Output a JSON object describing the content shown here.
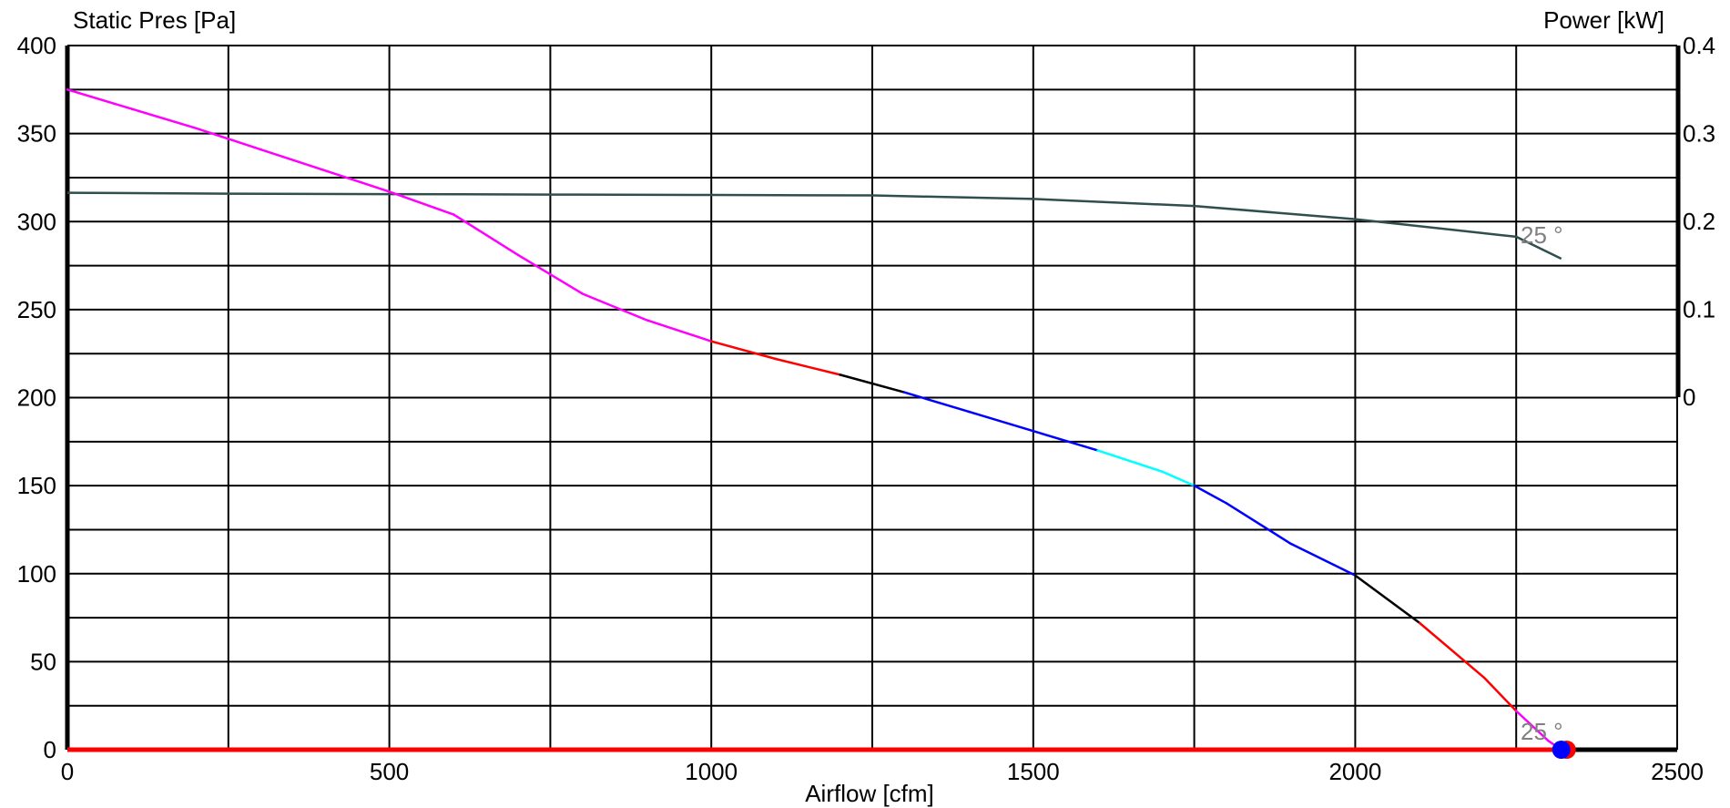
{
  "chart_data": {
    "type": "line",
    "title": "",
    "xlabel": "Airflow [cfm]",
    "ylabel_left": "Static Pres [Pa]",
    "ylabel_right": "Power [kW]",
    "xlim": [
      0,
      2500
    ],
    "ylim_left": [
      0,
      400
    ],
    "ylim_right": [
      0,
      0.4
    ],
    "grid": true,
    "x_ticks": [
      0,
      500,
      1000,
      1500,
      2000,
      2500
    ],
    "x_tick_labels": [
      "0",
      "500",
      "1000",
      "1500",
      "2000",
      "2500"
    ],
    "y_left_ticks": [
      0,
      50,
      100,
      150,
      200,
      250,
      300,
      350,
      400
    ],
    "y_left_tick_labels": [
      "0",
      "50",
      "100",
      "150",
      "200",
      "250",
      "300",
      "350",
      "400"
    ],
    "y_right_ticks": [
      0,
      0.1,
      0.2,
      0.3,
      0.4
    ],
    "y_right_tick_labels": [
      "0",
      "0.1",
      "0.2",
      "0.3",
      "0.4"
    ],
    "colors": {
      "pressure_curve_segments": [
        "#ff00ff",
        "#ff0000",
        "#000000",
        "#0000ff",
        "#00ffff",
        "#0000ff",
        "#000000",
        "#ff0000",
        "#ff00ff"
      ],
      "power_curve": "#2f4f4f",
      "curve_label": "#808080",
      "baseline_red": "#ff0000",
      "baseline_black": "#000000",
      "operating_point": "#0000ff"
    },
    "series": [
      {
        "axis": "left",
        "x": [
          0,
          100,
          200,
          300,
          400,
          500,
          600,
          700,
          800,
          900,
          1000,
          1100,
          1200,
          1300,
          1400,
          1500,
          1600,
          1700,
          1750,
          1800,
          1900,
          2000,
          2100,
          2200,
          2250,
          2300,
          2320
        ],
        "y": [
          375,
          364,
          353,
          341,
          329,
          317,
          304,
          281,
          259,
          244,
          232,
          222,
          213,
          203,
          192,
          181,
          170,
          158,
          150,
          140,
          117,
          99,
          72,
          41,
          22,
          5,
          0
        ],
        "label": "25 °"
      },
      {
        "axis": "right",
        "x": [
          0,
          250,
          500,
          750,
          1000,
          1250,
          1500,
          1750,
          2000,
          2250,
          2320
        ],
        "y": [
          0.2325,
          0.2315,
          0.231,
          0.2305,
          0.23,
          0.2295,
          0.2255,
          0.2175,
          0.2025,
          0.1825,
          0.1575
        ],
        "label": "25 °"
      }
    ],
    "operating_point": {
      "x": 2320,
      "y": 0
    }
  }
}
